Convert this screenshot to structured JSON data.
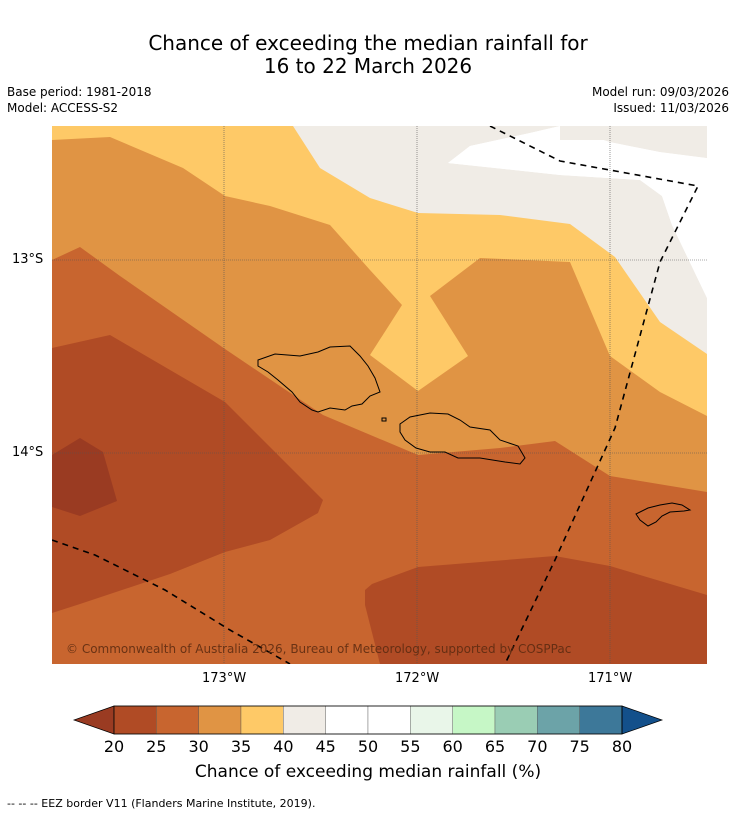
{
  "title_line1": "Chance of exceeding the median rainfall for",
  "title_line2": "16 to 22 March 2026",
  "base_period": "Base period: 1981-2018",
  "model": "Model: ACCESS-S2",
  "model_run": "Model run: 09/03/2026",
  "issued": "Issued: 11/03/2026",
  "lat_labels": [
    "13°S",
    "14°S"
  ],
  "lon_labels": [
    "173°W",
    "172°W",
    "171°W"
  ],
  "copyright": "© Commonwealth of Australia 2026, Bureau of Meteorology, supported by COSPPac",
  "colorbar": {
    "ticks": [
      "20",
      "25",
      "30",
      "35",
      "40",
      "45",
      "50",
      "55",
      "60",
      "65",
      "70",
      "75",
      "80"
    ],
    "colors": [
      "#b04b25",
      "#c8652f",
      "#e09444",
      "#fec967",
      "#f0ece6",
      "#ffffff",
      "#ffffff",
      "#e9f6e9",
      "#c6f7c6",
      "#9acdb4",
      "#6ca3a8",
      "#3d7899"
    ],
    "under_color": "#9a3b22",
    "over_color": "#13508b",
    "title": "Chance of exceeding median rainfall (%)"
  },
  "footnote": "--  --  -- EEZ border V11 (Flanders Marine Institute, 2019).",
  "map_colors": {
    "darkest": "#9a3b22",
    "dark": "#b04b25",
    "mid": "#c8652f",
    "orange": "#e09444",
    "yellow": "#fec967",
    "grey": "#f0ece6",
    "white": "#ffffff"
  }
}
